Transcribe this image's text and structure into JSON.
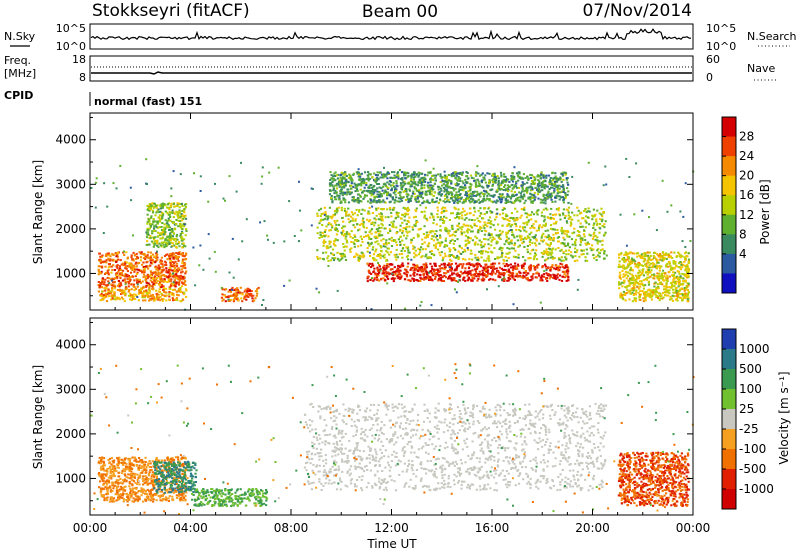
{
  "header": {
    "station": "Stokkseyri (fitACF)",
    "beam": "Beam 00",
    "date": "07/Nov/2014"
  },
  "noise_panel": {
    "left_label": "N.Sky",
    "right_label": "N.Search",
    "left_ticks": [
      "10^5",
      "10^0"
    ],
    "right_ticks": [
      "10^5",
      "10^0"
    ]
  },
  "freq_panel": {
    "left_label_1": "Freq.",
    "left_label_2": "[MHz]",
    "right_label": "Nave",
    "left_ticks": [
      "18",
      "8"
    ],
    "right_ticks": [
      "60",
      "0"
    ]
  },
  "cpid": {
    "label": "CPID",
    "mode": "normal (fast) 151"
  },
  "power_colorbar": {
    "title": "Power [dB]",
    "ticks": [
      "28",
      "24",
      "20",
      "16",
      "12",
      "8",
      "4"
    ],
    "colors": [
      "#d40000",
      "#f04000",
      "#f58a00",
      "#f5c400",
      "#b8d000",
      "#60b030",
      "#3a8a60",
      "#2c5aa0",
      "#1010c0"
    ]
  },
  "velocity_colorbar": {
    "title": "Velocity [m s⁻¹]",
    "ticks": [
      "1000",
      "500",
      "100",
      "25",
      "-25",
      "-100",
      "-500",
      "-1000"
    ],
    "colors": [
      "#1f3fb0",
      "#2a7a8a",
      "#3a9a50",
      "#70c030",
      "#c8c8c0",
      "#f5a020",
      "#f07000",
      "#e02000",
      "#d00000"
    ]
  },
  "chart_data": [
    {
      "type": "heatmap",
      "title": "Power",
      "xlabel": "",
      "ylabel": "Slant Range [km]",
      "x_ticks": [
        "00:00",
        "04:00",
        "08:00",
        "12:00",
        "16:00",
        "20:00",
        "00:00"
      ],
      "y_ticks": [
        "4000",
        "3000",
        "2000",
        "1000"
      ],
      "xlim": [
        0,
        24
      ],
      "ylim": [
        180,
        4600
      ],
      "colorbar": "Power [dB]",
      "features": [
        {
          "t0": 0.3,
          "t1": 3.8,
          "r0": 700,
          "r1": 1500,
          "value": 24
        },
        {
          "t0": 0.3,
          "t1": 3.8,
          "r0": 400,
          "r1": 700,
          "value": 20
        },
        {
          "t0": 2.2,
          "t1": 3.8,
          "r0": 1600,
          "r1": 2600,
          "value": 12
        },
        {
          "t0": 5.2,
          "t1": 6.7,
          "r0": 400,
          "r1": 700,
          "value": 24
        },
        {
          "t0": 11.0,
          "t1": 19.0,
          "r0": 850,
          "r1": 1250,
          "value": 28
        },
        {
          "t0": 9.0,
          "t1": 20.5,
          "r0": 1300,
          "r1": 2500,
          "value": 14
        },
        {
          "t0": 9.5,
          "t1": 19.0,
          "r0": 2600,
          "r1": 3300,
          "value": 8
        },
        {
          "t0": 21.0,
          "t1": 23.8,
          "r0": 400,
          "r1": 1500,
          "value": 16
        }
      ]
    },
    {
      "type": "heatmap",
      "title": "Velocity",
      "xlabel": "Time UT",
      "ylabel": "Slant Range [km]",
      "x_ticks": [
        "00:00",
        "04:00",
        "08:00",
        "12:00",
        "16:00",
        "20:00",
        "00:00"
      ],
      "y_ticks": [
        "4000",
        "3000",
        "2000",
        "1000"
      ],
      "xlim": [
        0,
        24
      ],
      "ylim": [
        180,
        4600
      ],
      "colorbar": "Velocity [m s⁻¹]",
      "features": [
        {
          "t0": 0.3,
          "t1": 3.8,
          "r0": 500,
          "r1": 1500,
          "value": -100
        },
        {
          "t0": 2.5,
          "t1": 4.2,
          "r0": 700,
          "r1": 1400,
          "value": 500
        },
        {
          "t0": 4.0,
          "t1": 7.0,
          "r0": 400,
          "r1": 800,
          "value": 100
        },
        {
          "t0": 8.5,
          "t1": 20.5,
          "r0": 750,
          "r1": 2700,
          "value": 0
        },
        {
          "t0": 21.0,
          "t1": 23.8,
          "r0": 400,
          "r1": 1600,
          "value": -500
        }
      ]
    }
  ]
}
